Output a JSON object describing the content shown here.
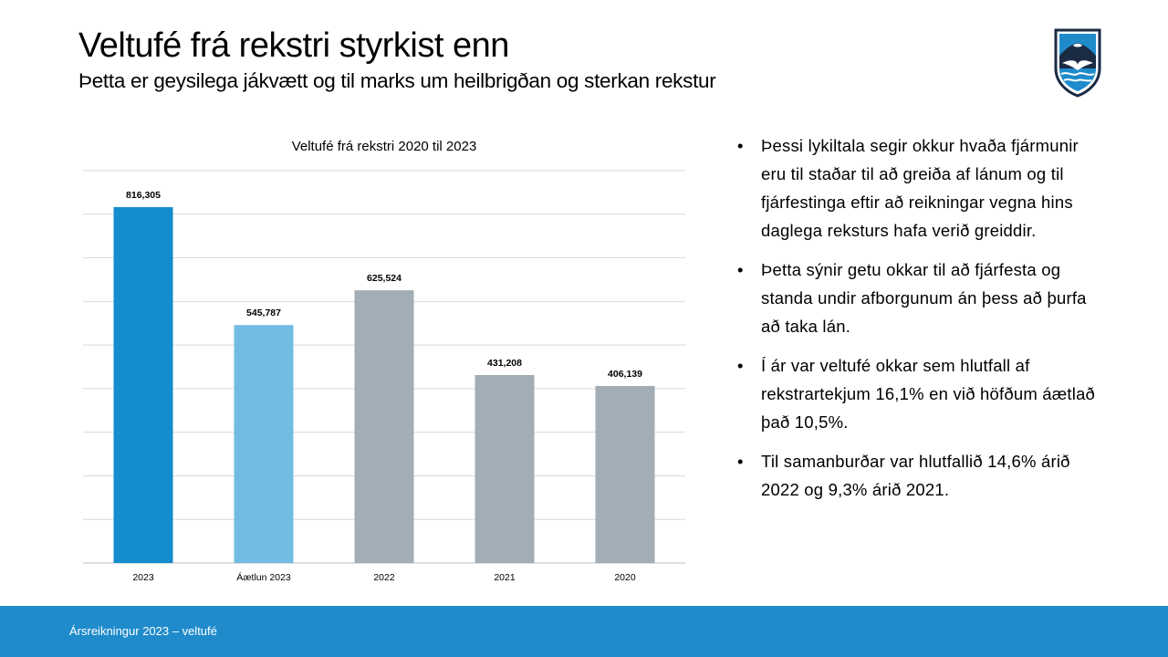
{
  "header": {
    "title": "Veltufé frá rekstri styrkist enn",
    "subtitle": "Þetta er geysilega jákvætt og til marks um heilbrigðan og sterkan rekstur"
  },
  "logo": {
    "icon": "coat-of-arms-icon"
  },
  "chart_data": {
    "type": "bar",
    "title": "Veltufé frá rekstri 2020 til 2023",
    "categories": [
      "2023",
      "Áætlun 2023",
      "2022",
      "2021",
      "2020"
    ],
    "values": [
      816305,
      545787,
      625524,
      431208,
      406139
    ],
    "value_labels": [
      "816,305",
      "545,787",
      "625,524",
      "431,208",
      "406,139"
    ],
    "bar_colors": [
      "#148ccd",
      "#72bbe3",
      "#a2adb5",
      "#a2adb5",
      "#a2adb5"
    ],
    "ylim": [
      0,
      900000
    ],
    "grid": true,
    "xlabel": "",
    "ylabel": ""
  },
  "bullets": [
    "Þessi lykiltala segir okkur hvaða fjármunir eru til staðar til að greiða af lánum og til fjárfestinga eftir að reikningar vegna hins daglega reksturs hafa verið greiddir.",
    "Þetta sýnir getu okkar til að fjárfesta og standa undir afborgunum án þess að þurfa að taka lán.",
    "Í ár var veltufé okkar sem hlutfall af rekstrartekjum 16,1% en við höfðum áætlað það 10,5%.",
    "Til samanburðar var hlutfallið 14,6% árið 2022 og 9,3% árið 2021."
  ],
  "bullet_symbol": "•",
  "footer": {
    "text": "Ársreikningur 2023 – veltufé"
  },
  "colors": {
    "footer": "#1f8bcb",
    "grid": "#d9d9d9",
    "axis": "#bfbfbf"
  }
}
